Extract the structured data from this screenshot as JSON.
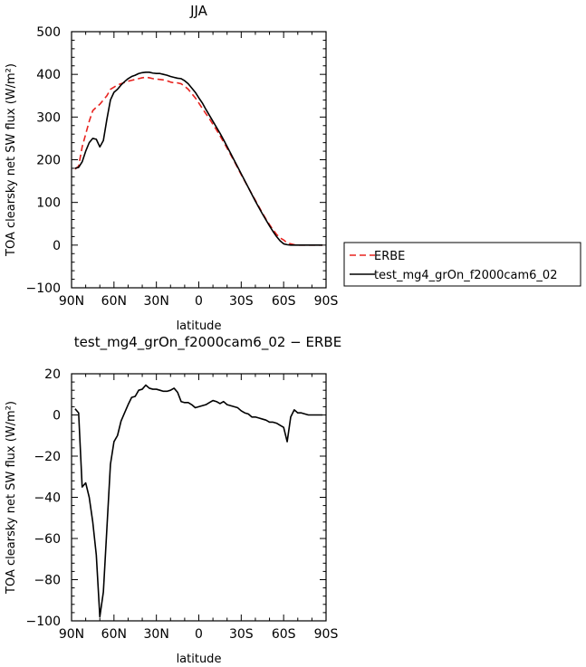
{
  "chart_data": [
    {
      "type": "line",
      "title": "JJA",
      "xlabel": "latitude",
      "ylabel": "TOA clearsky net SW flux (W/m²)",
      "xlim": [
        90,
        -90
      ],
      "ylim": [
        -100,
        500
      ],
      "xticks": [
        90,
        60,
        30,
        0,
        -30,
        -60,
        -90
      ],
      "xtick_labels": [
        "90N",
        "60N",
        "30N",
        "0",
        "30S",
        "60S",
        "90S"
      ],
      "yticks": [
        -100,
        0,
        100,
        200,
        300,
        400,
        500
      ],
      "ytick_labels": [
        "−100",
        "0",
        "100",
        "200",
        "300",
        "400",
        "500"
      ],
      "legend": "right",
      "series": [
        {
          "name": "ERBE",
          "color": "#e8231f",
          "dash": "dashed",
          "x": [
            87.5,
            85,
            82.5,
            80,
            77.5,
            75,
            72.5,
            70,
            67.5,
            65,
            62.5,
            60,
            57.5,
            55,
            52.5,
            50,
            47.5,
            45,
            42.5,
            40,
            37.5,
            35,
            32.5,
            30,
            27.5,
            25,
            22.5,
            20,
            17.5,
            15,
            12.5,
            10,
            7.5,
            5,
            2.5,
            0,
            -2.5,
            -5,
            -7.5,
            -10,
            -12.5,
            -15,
            -17.5,
            -20,
            -22.5,
            -25,
            -27.5,
            -30,
            -32.5,
            -35,
            -37.5,
            -40,
            -42.5,
            -45,
            -47.5,
            -50,
            -52.5,
            -55,
            -57.5,
            -60,
            -62.5,
            -65,
            -67.5,
            -70,
            -72.5,
            -75,
            -77.5,
            -80,
            -82.5,
            -85,
            -87.5
          ],
          "y": [
            178,
            185,
            230,
            260,
            290,
            315,
            323,
            330,
            340,
            350,
            365,
            370,
            375,
            378,
            381,
            384,
            386,
            388,
            390,
            392,
            393,
            392,
            390,
            389,
            388,
            387,
            385,
            382,
            380,
            380,
            378,
            372,
            365,
            355,
            345,
            333,
            320,
            308,
            296,
            283,
            270,
            256,
            242,
            227,
            212,
            197,
            181,
            165,
            150,
            135,
            120,
            105,
            90,
            75,
            61,
            48,
            36,
            25,
            17,
            12,
            5,
            3,
            1,
            0,
            0,
            0,
            0,
            0,
            0,
            0,
            0
          ]
        },
        {
          "name": "test_mg4_grOn_f2000cam6_02",
          "color": "#000000",
          "dash": "solid",
          "x": [
            87.5,
            85,
            82.5,
            80,
            77.5,
            75,
            72.5,
            70,
            67.5,
            65,
            62.5,
            60,
            57.5,
            55,
            52.5,
            50,
            47.5,
            45,
            42.5,
            40,
            37.5,
            35,
            32.5,
            30,
            27.5,
            25,
            22.5,
            20,
            17.5,
            15,
            12.5,
            10,
            7.5,
            5,
            2.5,
            0,
            -2.5,
            -5,
            -7.5,
            -10,
            -12.5,
            -15,
            -17.5,
            -20,
            -22.5,
            -25,
            -27.5,
            -30,
            -32.5,
            -35,
            -37.5,
            -40,
            -42.5,
            -45,
            -47.5,
            -50,
            -52.5,
            -55,
            -57.5,
            -60,
            -62.5,
            -65,
            -67.5,
            -70,
            -72.5,
            -75,
            -77.5,
            -80,
            -82.5,
            -85,
            -87.5
          ],
          "y": [
            180,
            182,
            195,
            220,
            240,
            250,
            248,
            230,
            245,
            295,
            340,
            358,
            365,
            375,
            383,
            390,
            395,
            398,
            402,
            404,
            405,
            405,
            403,
            402,
            402,
            400,
            398,
            395,
            393,
            391,
            390,
            385,
            378,
            368,
            358,
            345,
            333,
            318,
            304,
            290,
            276,
            262,
            247,
            231,
            215,
            199,
            183,
            167,
            151,
            135,
            119,
            103,
            88,
            73,
            59,
            45,
            32,
            20,
            10,
            3,
            1,
            0,
            0,
            0,
            0,
            0,
            0,
            0,
            0,
            0,
            0
          ]
        }
      ]
    },
    {
      "type": "line",
      "title": "test_mg4_grOn_f2000cam6_02 − ERBE",
      "xlabel": "latitude",
      "ylabel": "TOA clearsky net SW flux (W/m²)",
      "xlim": [
        90,
        -90
      ],
      "ylim": [
        -100,
        20
      ],
      "xticks": [
        90,
        60,
        30,
        0,
        -30,
        -60,
        -90
      ],
      "xtick_labels": [
        "90N",
        "60N",
        "30N",
        "0",
        "30S",
        "60S",
        "90S"
      ],
      "yticks": [
        -100,
        -80,
        -60,
        -40,
        -20,
        0,
        20
      ],
      "ytick_labels": [
        "−100",
        "−80",
        "−60",
        "−40",
        "−20",
        "0",
        "20"
      ],
      "series": [
        {
          "color": "#000000",
          "dash": "solid",
          "x": [
            87.5,
            85,
            82.5,
            80,
            77.5,
            75,
            72.5,
            70,
            67.5,
            65,
            62.5,
            60,
            57.5,
            55,
            52.5,
            50,
            47.5,
            45,
            42.5,
            40,
            37.5,
            35,
            32.5,
            30,
            27.5,
            25,
            22.5,
            20,
            17.5,
            15,
            12.5,
            10,
            7.5,
            5,
            2.5,
            0,
            -2.5,
            -5,
            -7.5,
            -10,
            -12.5,
            -15,
            -17.5,
            -20,
            -22.5,
            -25,
            -27.5,
            -30,
            -32.5,
            -35,
            -37.5,
            -40,
            -42.5,
            -45,
            -47.5,
            -50,
            -52.5,
            -55,
            -57.5,
            -60,
            -62.5,
            -65,
            -67.5,
            -70,
            -72.5,
            -75,
            -77.5,
            -80,
            -82.5,
            -85,
            -87.5
          ],
          "y": [
            3,
            1,
            -35,
            -33,
            -40,
            -52,
            -68,
            -98,
            -86,
            -55,
            -24,
            -13,
            -10,
            -3,
            1,
            5,
            8.5,
            9,
            12,
            12.5,
            14.5,
            13,
            12.5,
            12.5,
            12,
            11.5,
            11.5,
            12,
            13,
            11,
            6.5,
            6,
            6,
            5,
            3.5,
            4,
            4.5,
            5,
            6,
            7,
            6.5,
            5.5,
            6.5,
            5,
            4.5,
            4,
            3.5,
            2,
            1,
            0.5,
            -1,
            -1,
            -1.5,
            -2,
            -2.5,
            -3.5,
            -3.5,
            -4,
            -5,
            -6,
            -13,
            -1,
            2.5,
            1,
            1,
            0.5,
            0,
            0,
            0,
            0,
            0
          ]
        }
      ]
    }
  ]
}
